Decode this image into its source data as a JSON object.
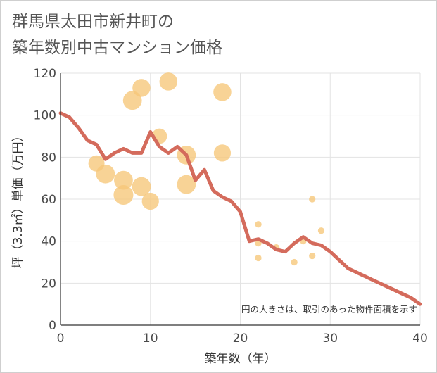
{
  "title": "群馬県太田市新井町の\n築年数別中古マンション価格",
  "chart_data": {
    "type": "scatter",
    "xlabel": "築年数（年）",
    "ylabel": "坪（3.3㎡）単価（万円）",
    "xlim": [
      0,
      40
    ],
    "ylim": [
      0,
      120
    ],
    "xticks": [
      0,
      10,
      20,
      30,
      40
    ],
    "yticks": [
      0,
      20,
      40,
      60,
      80,
      100,
      120
    ],
    "grid": true,
    "annotation": "円の大きさは、取引のあった物件面積を示す",
    "colors": {
      "bubble": "#f6c678",
      "line": "#d46b5c",
      "grid": "#e3e3e3"
    },
    "line": {
      "x": [
        0,
        1,
        2,
        3,
        4,
        5,
        6,
        7,
        8,
        9,
        10,
        11,
        12,
        13,
        14,
        15,
        16,
        17,
        18,
        19,
        20,
        21,
        22,
        23,
        24,
        25,
        26,
        27,
        28,
        29,
        30,
        31,
        32,
        33,
        34,
        35,
        36,
        37,
        38,
        39,
        40
      ],
      "y": [
        101,
        99,
        94,
        88,
        86,
        79,
        82,
        84,
        82,
        82,
        92,
        85,
        82,
        85,
        81,
        69,
        74,
        64,
        61,
        59,
        54,
        40,
        41,
        39,
        36,
        35,
        39,
        42,
        39,
        38,
        35,
        31,
        27,
        25,
        23,
        21,
        19,
        17,
        15,
        13,
        10
      ]
    },
    "bubbles": [
      {
        "x": 8,
        "y": 107,
        "size": 19
      },
      {
        "x": 9,
        "y": 113,
        "size": 18
      },
      {
        "x": 12,
        "y": 116,
        "size": 18
      },
      {
        "x": 18,
        "y": 111,
        "size": 18
      },
      {
        "x": 11,
        "y": 90,
        "size": 15
      },
      {
        "x": 14,
        "y": 81,
        "size": 19
      },
      {
        "x": 18,
        "y": 82,
        "size": 17
      },
      {
        "x": 4,
        "y": 77,
        "size": 16
      },
      {
        "x": 5,
        "y": 72,
        "size": 19
      },
      {
        "x": 7,
        "y": 69,
        "size": 19
      },
      {
        "x": 9,
        "y": 66,
        "size": 19
      },
      {
        "x": 14,
        "y": 67,
        "size": 19
      },
      {
        "x": 7,
        "y": 62,
        "size": 20
      },
      {
        "x": 10,
        "y": 59,
        "size": 17
      },
      {
        "x": 22,
        "y": 48,
        "size": 5
      },
      {
        "x": 22,
        "y": 39,
        "size": 5
      },
      {
        "x": 22,
        "y": 32,
        "size": 5
      },
      {
        "x": 24,
        "y": 37,
        "size": 5
      },
      {
        "x": 26,
        "y": 30,
        "size": 5
      },
      {
        "x": 27,
        "y": 40,
        "size": 5
      },
      {
        "x": 28,
        "y": 60,
        "size": 5
      },
      {
        "x": 28,
        "y": 33,
        "size": 5
      },
      {
        "x": 29,
        "y": 45,
        "size": 5
      }
    ]
  }
}
